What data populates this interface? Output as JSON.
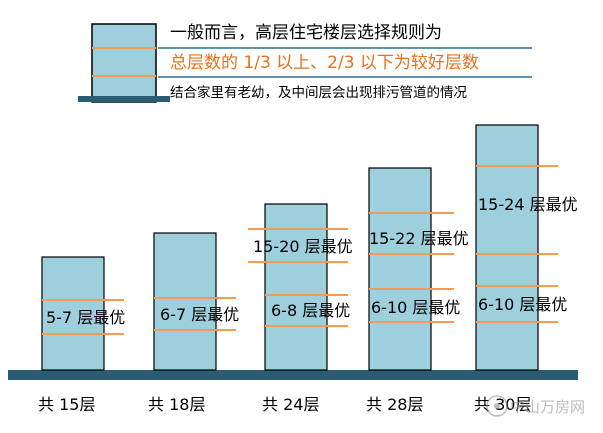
{
  "legend": {
    "line1": "一般而言，高层住宅楼层选择规则为",
    "line2": "总层数的 1/3 以上、2/3 以下为较好层数",
    "line3": "结合家里有老幼，及中间层会出现排污管道的情况"
  },
  "buildings": [
    {
      "total_label": "共 15层",
      "total_floors": 15,
      "zones": [
        {
          "label": "5-7 层最优"
        }
      ]
    },
    {
      "total_label": "共 18层",
      "total_floors": 18,
      "zones": [
        {
          "label": "6-7 层最优"
        }
      ]
    },
    {
      "total_label": "共 24层",
      "total_floors": 24,
      "zones": [
        {
          "label": "15-20 层最优"
        },
        {
          "label": "6-8 层最优"
        }
      ]
    },
    {
      "total_label": "共 28层",
      "total_floors": 28,
      "zones": [
        {
          "label": "15-22 层最优"
        },
        {
          "label": "6-10 层最优"
        }
      ]
    },
    {
      "total_label": "共 30层",
      "total_floors": 30,
      "zones": [
        {
          "label": "15-24 层最优"
        },
        {
          "label": "6-10 层最优"
        }
      ]
    }
  ],
  "watermark": "中山万房网",
  "colors": {
    "building_fill": "#9ecfdd",
    "building_stroke": "#000000",
    "zone_line": "#f39a54",
    "ground": "#2b5c74",
    "accent_text": "#e8711c",
    "legend_line": "#2f6f90"
  }
}
